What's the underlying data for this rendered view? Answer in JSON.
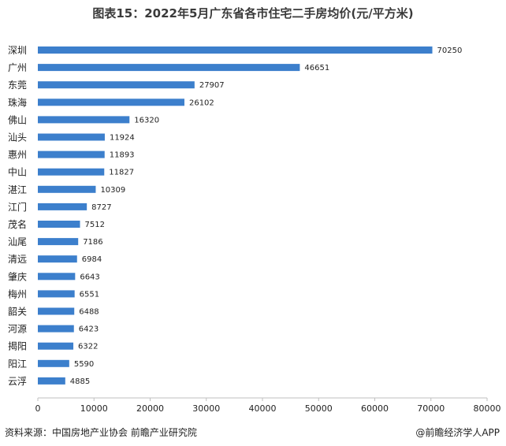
{
  "title": "图表15：2022年5月广东省各市住宅二手房均价(元/平方米)",
  "chart_data": {
    "type": "bar",
    "orientation": "horizontal",
    "categories": [
      "深圳",
      "广州",
      "东莞",
      "珠海",
      "佛山",
      "汕头",
      "惠州",
      "中山",
      "湛江",
      "江门",
      "茂名",
      "汕尾",
      "清远",
      "肇庆",
      "梅州",
      "韶关",
      "河源",
      "揭阳",
      "阳江",
      "云浮"
    ],
    "values": [
      70250,
      46651,
      27907,
      26102,
      16320,
      11924,
      11893,
      11827,
      10309,
      8727,
      7512,
      7186,
      6984,
      6643,
      6551,
      6488,
      6423,
      6322,
      5590,
      4885
    ],
    "xlim": [
      0,
      80000
    ],
    "xticks": [
      0,
      10000,
      20000,
      30000,
      40000,
      50000,
      60000,
      70000,
      80000
    ],
    "xticklabels": [
      "0",
      "10000",
      "20000",
      "30000",
      "40000",
      "50000",
      "60000",
      "70000",
      "80000"
    ],
    "data_labels": true,
    "grid": false,
    "colors": {
      "bar": "#3c7fcc",
      "axis": "#bfbfbf"
    }
  },
  "footer": {
    "source": "资料来源：中国房地产业协会 前瞻产业研究院",
    "brand": "@前瞻经济学人APP"
  }
}
